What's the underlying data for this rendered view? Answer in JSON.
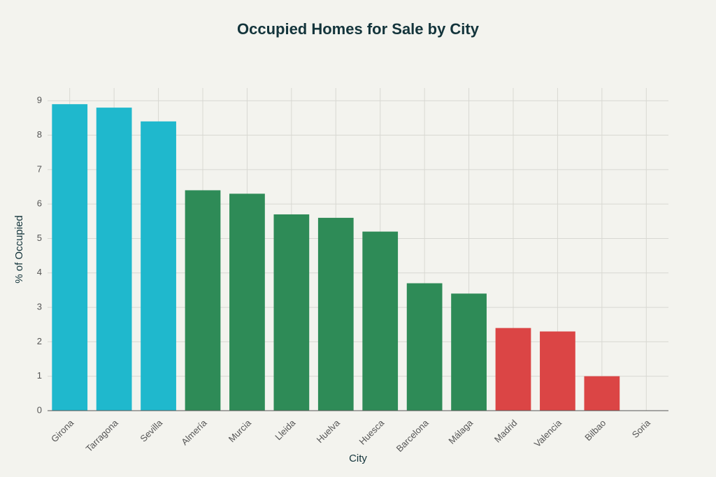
{
  "chart_data": {
    "type": "bar",
    "title": "Occupied Homes for Sale by City",
    "x_label": "City",
    "y_label": "% of Occupied",
    "categories": [
      "Girona",
      "Tarragona",
      "Sevilla",
      "Almería",
      "Murcia",
      "Lleida",
      "Huelva",
      "Huesca",
      "Barcelona",
      "Málaga",
      "Madrid",
      "Valencia",
      "Bilbao",
      "Soria"
    ],
    "values": [
      8.9,
      8.8,
      8.4,
      6.4,
      6.3,
      5.7,
      5.6,
      5.2,
      3.7,
      3.4,
      2.4,
      2.3,
      1.0,
      0
    ],
    "colors": [
      "#1fb8cd",
      "#1fb8cd",
      "#1fb8cd",
      "#2e8b57",
      "#2e8b57",
      "#2e8b57",
      "#2e8b57",
      "#2e8b57",
      "#2e8b57",
      "#2e8b57",
      "#db4545",
      "#db4545",
      "#db4545",
      "#db4545"
    ],
    "ylim": [
      0,
      9.37
    ],
    "yticks": [
      0,
      1,
      2,
      3,
      4,
      5,
      6,
      7,
      8,
      9
    ],
    "grid": true
  }
}
